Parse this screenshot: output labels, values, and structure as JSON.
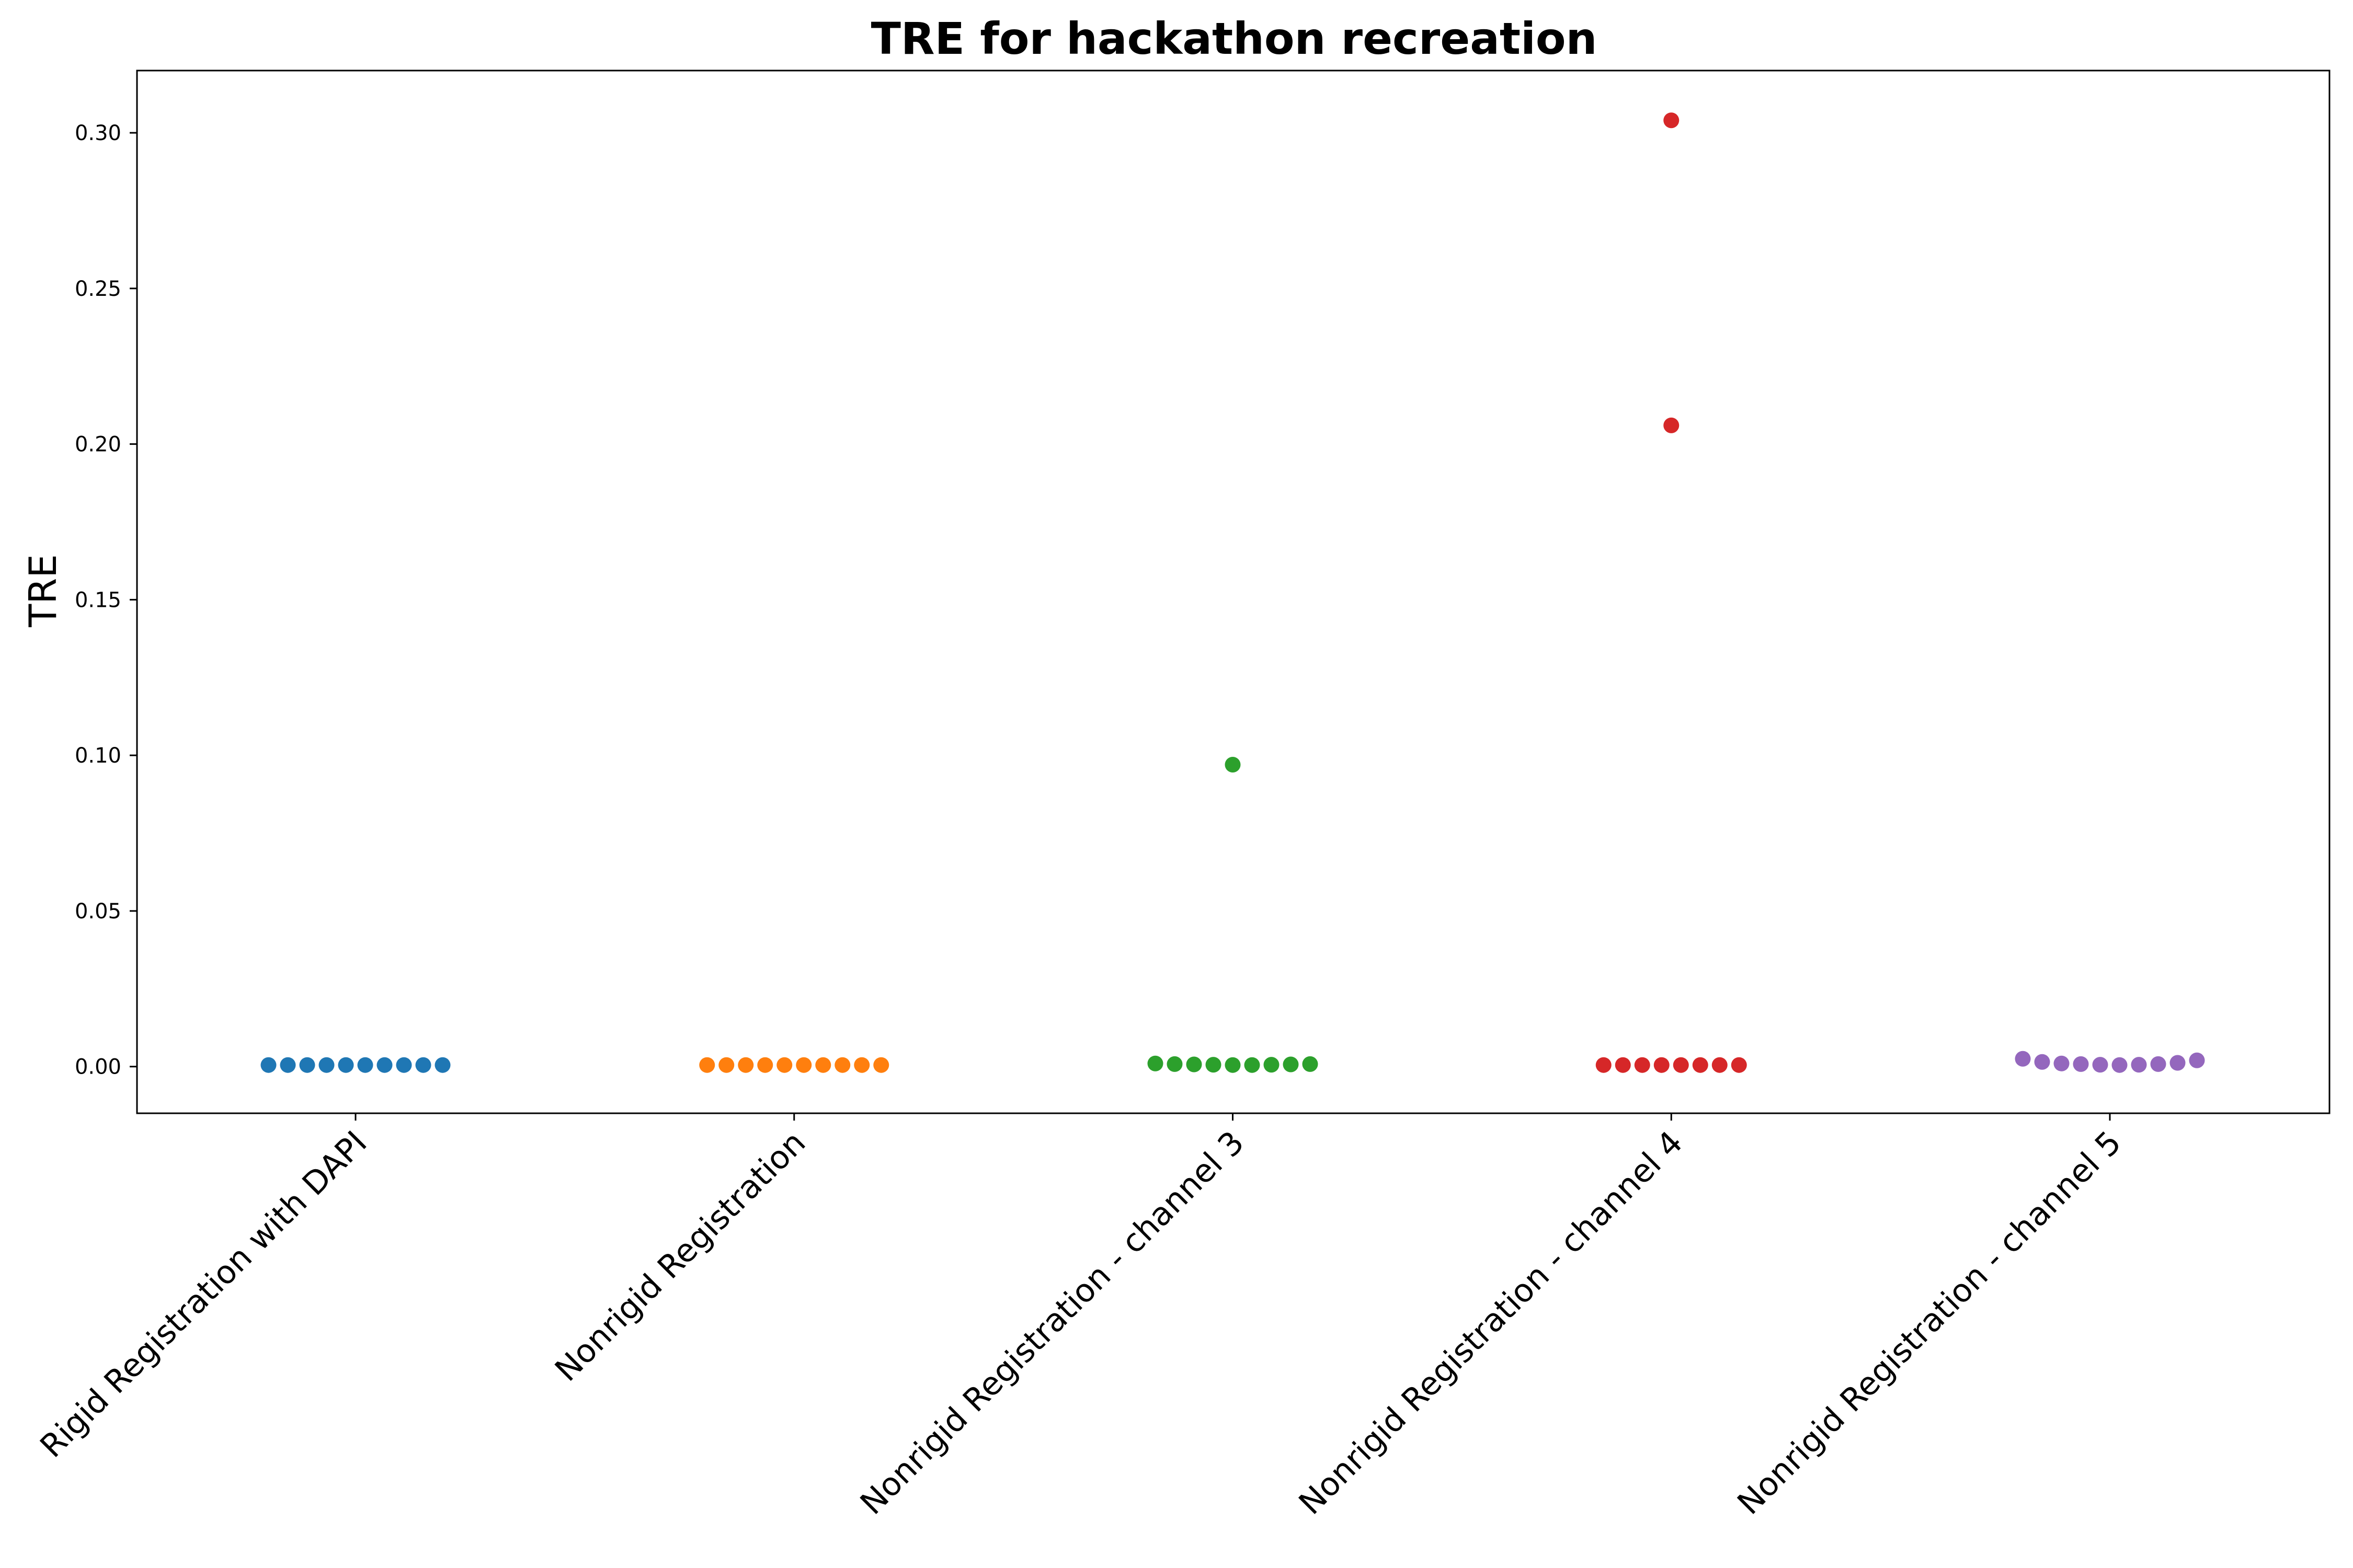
{
  "chart_data": {
    "type": "scatter",
    "title": "TRE for hackathon recreation",
    "xlabel": "",
    "ylabel": "TRE",
    "ylim": [
      -0.015,
      0.32
    ],
    "yticks": [
      "0.00",
      "0.05",
      "0.10",
      "0.15",
      "0.20",
      "0.25",
      "0.30"
    ],
    "grid": false,
    "categories": [
      "Rigid Registration with DAPI",
      "Nonrigid Registration",
      "Nonrigid Registration - channel 3",
      "Nonrigid Registration - channel 4",
      "Nonrigid Registration - channel 5"
    ],
    "series": [
      {
        "category": "Rigid Registration with DAPI",
        "color": "#1f77b4",
        "values": [
          0.0005,
          0.0005,
          0.0005,
          0.0005,
          0.0005,
          0.0005,
          0.0005,
          0.0005,
          0.0005,
          0.0005
        ]
      },
      {
        "category": "Nonrigid Registration",
        "color": "#ff7f0e",
        "values": [
          0.0005,
          0.0005,
          0.0005,
          0.0005,
          0.0005,
          0.0005,
          0.0005,
          0.0005,
          0.0005,
          0.0005
        ]
      },
      {
        "category": "Nonrigid Registration - channel 3",
        "color": "#2ca02c",
        "values": [
          0.097,
          0.001,
          0.0008,
          0.0007,
          0.0006,
          0.0005,
          0.0005,
          0.0006,
          0.0007,
          0.0008
        ]
      },
      {
        "category": "Nonrigid Registration - channel 4",
        "color": "#d62728",
        "values": [
          0.304,
          0.206,
          0.0005,
          0.0005,
          0.0005,
          0.0005,
          0.0005,
          0.0005,
          0.0005,
          0.0005
        ]
      },
      {
        "category": "Nonrigid Registration - channel 5",
        "color": "#9467bd",
        "values": [
          0.0025,
          0.0015,
          0.001,
          0.0008,
          0.0006,
          0.0005,
          0.0006,
          0.0008,
          0.0012,
          0.002
        ]
      }
    ]
  }
}
